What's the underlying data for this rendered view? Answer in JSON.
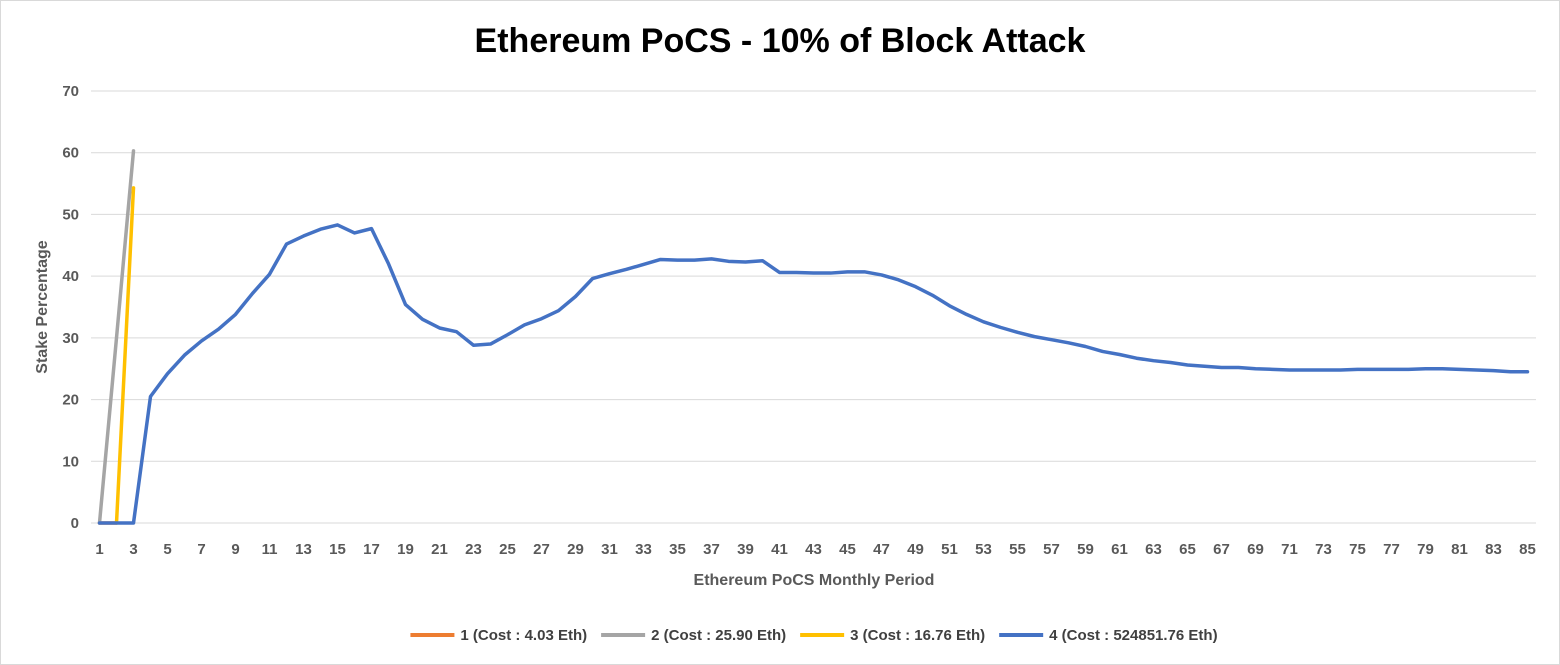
{
  "chart_data": {
    "type": "line",
    "title": "Ethereum PoCS - 10% of Block Attack",
    "xlabel": "Ethereum PoCS Monthly Period",
    "ylabel": "Stake Percentage",
    "ylim": [
      0,
      70
    ],
    "yticks": [
      0,
      10,
      20,
      30,
      40,
      50,
      60,
      70
    ],
    "x_range": [
      1,
      85
    ],
    "xticks": [
      "1",
      "3",
      "5",
      "7",
      "9",
      "11",
      "13",
      "15",
      "17",
      "19",
      "21",
      "23",
      "25",
      "27",
      "29",
      "31",
      "33",
      "35",
      "37",
      "39",
      "41",
      "43",
      "45",
      "47",
      "49",
      "51",
      "53",
      "55",
      "57",
      "59",
      "61",
      "63",
      "65",
      "67",
      "69",
      "71",
      "73",
      "75",
      "77",
      "79",
      "81",
      "83",
      "85"
    ],
    "grid": "horizontal",
    "legend_position": "bottom",
    "series": [
      {
        "name": "1 (Cost : 4.03 Eth)",
        "color": "#ED7D31",
        "x": [
          1,
          2
        ],
        "y": [
          0,
          0
        ]
      },
      {
        "name": "2 (Cost : 25.90 Eth)",
        "color": "#A5A5A5",
        "x": [
          1,
          2,
          3
        ],
        "y": [
          0,
          30,
          60.3
        ]
      },
      {
        "name": "3 (Cost : 16.76 Eth)",
        "color": "#FFC000",
        "x": [
          2,
          3
        ],
        "y": [
          0,
          54.3
        ]
      },
      {
        "name": "4 (Cost : 524851.76 Eth)",
        "color": "#4472C4",
        "x": [
          1,
          2,
          3,
          4,
          5,
          6,
          7,
          8,
          9,
          10,
          11,
          12,
          13,
          14,
          15,
          16,
          17,
          18,
          19,
          20,
          21,
          22,
          23,
          24,
          25,
          26,
          27,
          28,
          29,
          30,
          31,
          32,
          33,
          34,
          35,
          36,
          37,
          38,
          39,
          40,
          41,
          42,
          43,
          44,
          45,
          46,
          47,
          48,
          49,
          50,
          51,
          52,
          53,
          54,
          55,
          56,
          57,
          58,
          59,
          60,
          61,
          62,
          63,
          64,
          65,
          66,
          67,
          68,
          69,
          70,
          71,
          72,
          73,
          74,
          75,
          76,
          77,
          78,
          79,
          80,
          81,
          82,
          83,
          84,
          85
        ],
        "y": [
          0,
          0,
          0,
          20.5,
          24.2,
          27.2,
          29.5,
          31.4,
          33.8,
          37.2,
          40.3,
          45.2,
          46.5,
          47.6,
          48.3,
          47.0,
          47.7,
          42.0,
          35.4,
          33.0,
          31.6,
          31.0,
          28.8,
          29.0,
          30.5,
          32.1,
          33.1,
          34.4,
          36.7,
          39.6,
          40.4,
          41.1,
          41.9,
          42.7,
          42.6,
          42.6,
          42.8,
          42.4,
          42.3,
          42.5,
          40.6,
          40.6,
          40.5,
          40.5,
          40.7,
          40.7,
          40.2,
          39.4,
          38.3,
          36.9,
          35.2,
          33.8,
          32.6,
          31.7,
          30.9,
          30.2,
          29.7,
          29.2,
          28.6,
          27.8,
          27.3,
          26.7,
          26.3,
          26.0,
          25.6,
          25.4,
          25.2,
          25.2,
          25.0,
          24.9,
          24.8,
          24.8,
          24.8,
          24.8,
          24.9,
          24.9,
          24.9,
          24.9,
          25.0,
          25.0,
          24.9,
          24.8,
          24.7,
          24.5,
          24.5
        ]
      }
    ]
  }
}
